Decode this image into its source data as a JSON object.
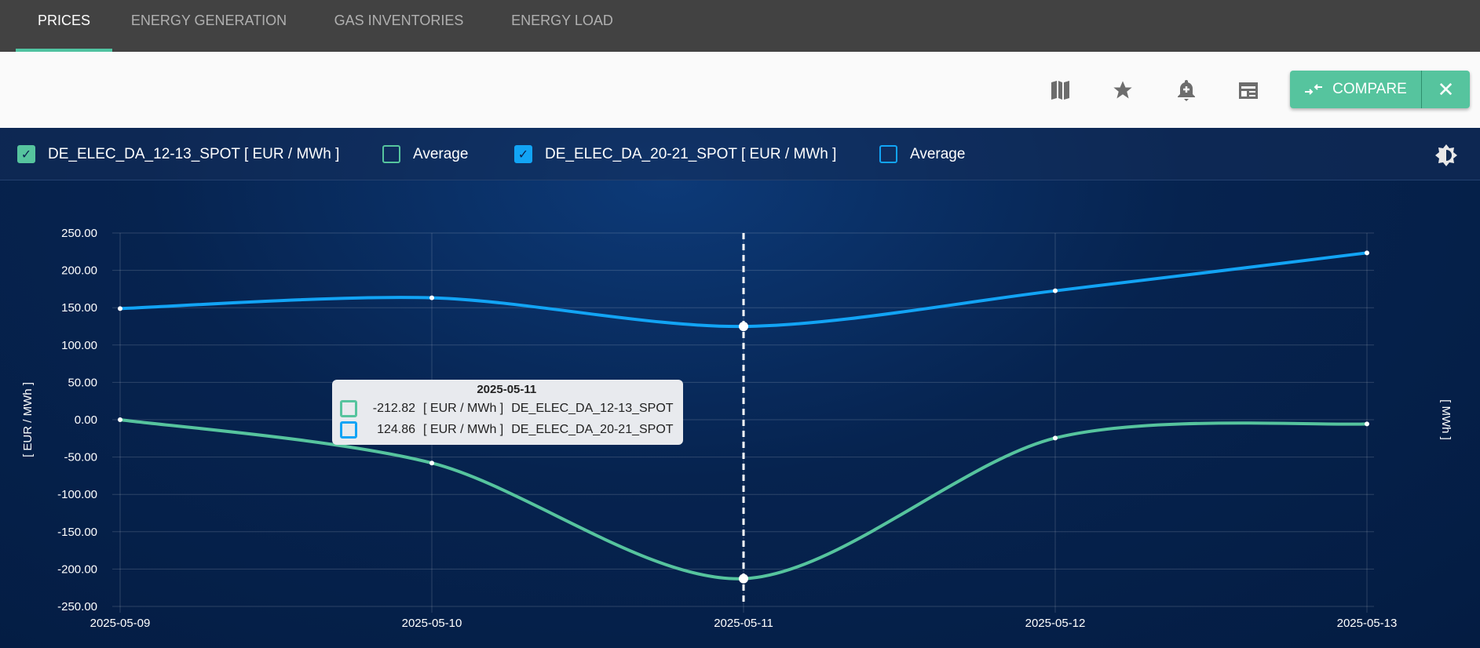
{
  "tabs": [
    {
      "label": "PRICES",
      "active": true
    },
    {
      "label": "ENERGY GENERATION"
    },
    {
      "label": "GAS INVENTORIES"
    },
    {
      "label": "ENERGY LOAD"
    }
  ],
  "toolbar": {
    "icons": [
      "map-icon",
      "star-icon",
      "bell-plus-icon",
      "calendar-layout-icon"
    ],
    "compare_label": "COMPARE",
    "close_label": "✕"
  },
  "legend": [
    {
      "label": "DE_ELEC_DA_12-13_SPOT [ EUR / MWh ]",
      "checked": true,
      "color": "#56c49e"
    },
    {
      "label": "Average",
      "checked": false,
      "color": "#56c49e"
    },
    {
      "label": "DE_ELEC_DA_20-21_SPOT [ EUR / MWh ]",
      "checked": true,
      "color": "#12a4f5"
    },
    {
      "label": "Average",
      "checked": false,
      "color": "#12a4f5"
    }
  ],
  "chart_data": {
    "type": "line",
    "x": [
      "2025-05-09",
      "2025-05-10",
      "2025-05-11",
      "2025-05-12",
      "2025-05-13"
    ],
    "series": [
      {
        "name": "DE_ELEC_DA_12-13_SPOT",
        "color": "#56c49e",
        "values": [
          0,
          -58,
          -212.82,
          -24.5,
          -5.6
        ]
      },
      {
        "name": "DE_ELEC_DA_20-21_SPOT",
        "color": "#12a4f5",
        "values": [
          148.8,
          163.2,
          124.86,
          172.6,
          223.4
        ]
      }
    ],
    "ylabel": "[ EUR / MWh ]",
    "y2label": "[ MWh ]",
    "ylim": [
      -250,
      250
    ],
    "yticks": [
      "250.00",
      "200.00",
      "150.00",
      "100.00",
      "50.00",
      "0.00",
      "-50.00",
      "-100.00",
      "-150.00",
      "-200.00",
      "-250.00"
    ],
    "grid": true,
    "hover_index": 2
  },
  "tooltip": {
    "title": "2025-05-11",
    "rows": [
      {
        "value": "-212.82",
        "unit": "[ EUR / MWh ]",
        "name": "DE_ELEC_DA_12-13_SPOT"
      },
      {
        "value": "124.86",
        "unit": "[ EUR / MWh ]",
        "name": "DE_ELEC_DA_20-21_SPOT"
      }
    ]
  }
}
